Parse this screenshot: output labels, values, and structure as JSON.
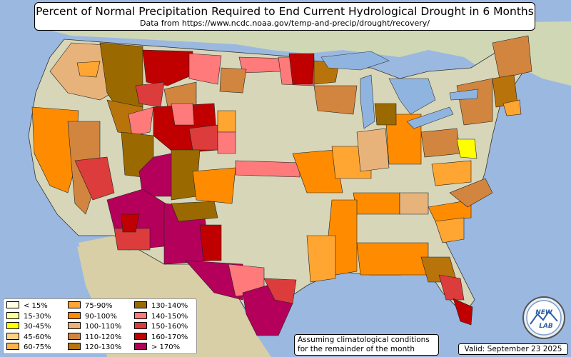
{
  "header": {
    "title": "Percent of Normal Precipitation Required to End Current Hydrological Drought in 6 Months",
    "subtitle": "Data from https://www.ncdc.noaa.gov/temp-and-precip/drought/recovery/"
  },
  "legend": {
    "items": [
      {
        "label": "< 15%",
        "color": "#ffffe0"
      },
      {
        "label": "15-30%",
        "color": "#ffff99"
      },
      {
        "label": "30-45%",
        "color": "#ffff00"
      },
      {
        "label": "45-60%",
        "color": "#ffd27f"
      },
      {
        "label": "60-75%",
        "color": "#ffb347"
      },
      {
        "label": "75-90%",
        "color": "#ffa532"
      },
      {
        "label": "90-100%",
        "color": "#ff8c00"
      },
      {
        "label": "100-110%",
        "color": "#e8b37a"
      },
      {
        "label": "110-120%",
        "color": "#d2853f"
      },
      {
        "label": "120-130%",
        "color": "#b8740a"
      },
      {
        "label": "130-140%",
        "color": "#9a6a00"
      },
      {
        "label": "140-150%",
        "color": "#ff7a7a"
      },
      {
        "label": "150-160%",
        "color": "#dc3c3c"
      },
      {
        "label": "160-170%",
        "color": "#c00000"
      },
      {
        "label": "> 170%",
        "color": "#b4005a"
      }
    ]
  },
  "note": {
    "line1": "Assuming climatological conditions",
    "line2": "for the remainder of the month"
  },
  "valid_text": "Valid: September 23 2025",
  "logo": {
    "text_top": "NEW",
    "text_bottom": "LAB"
  },
  "colors": {
    "ocean": "#9bb8e0",
    "land_base": "#d8d6b8",
    "lakes": "#8fb4df"
  }
}
